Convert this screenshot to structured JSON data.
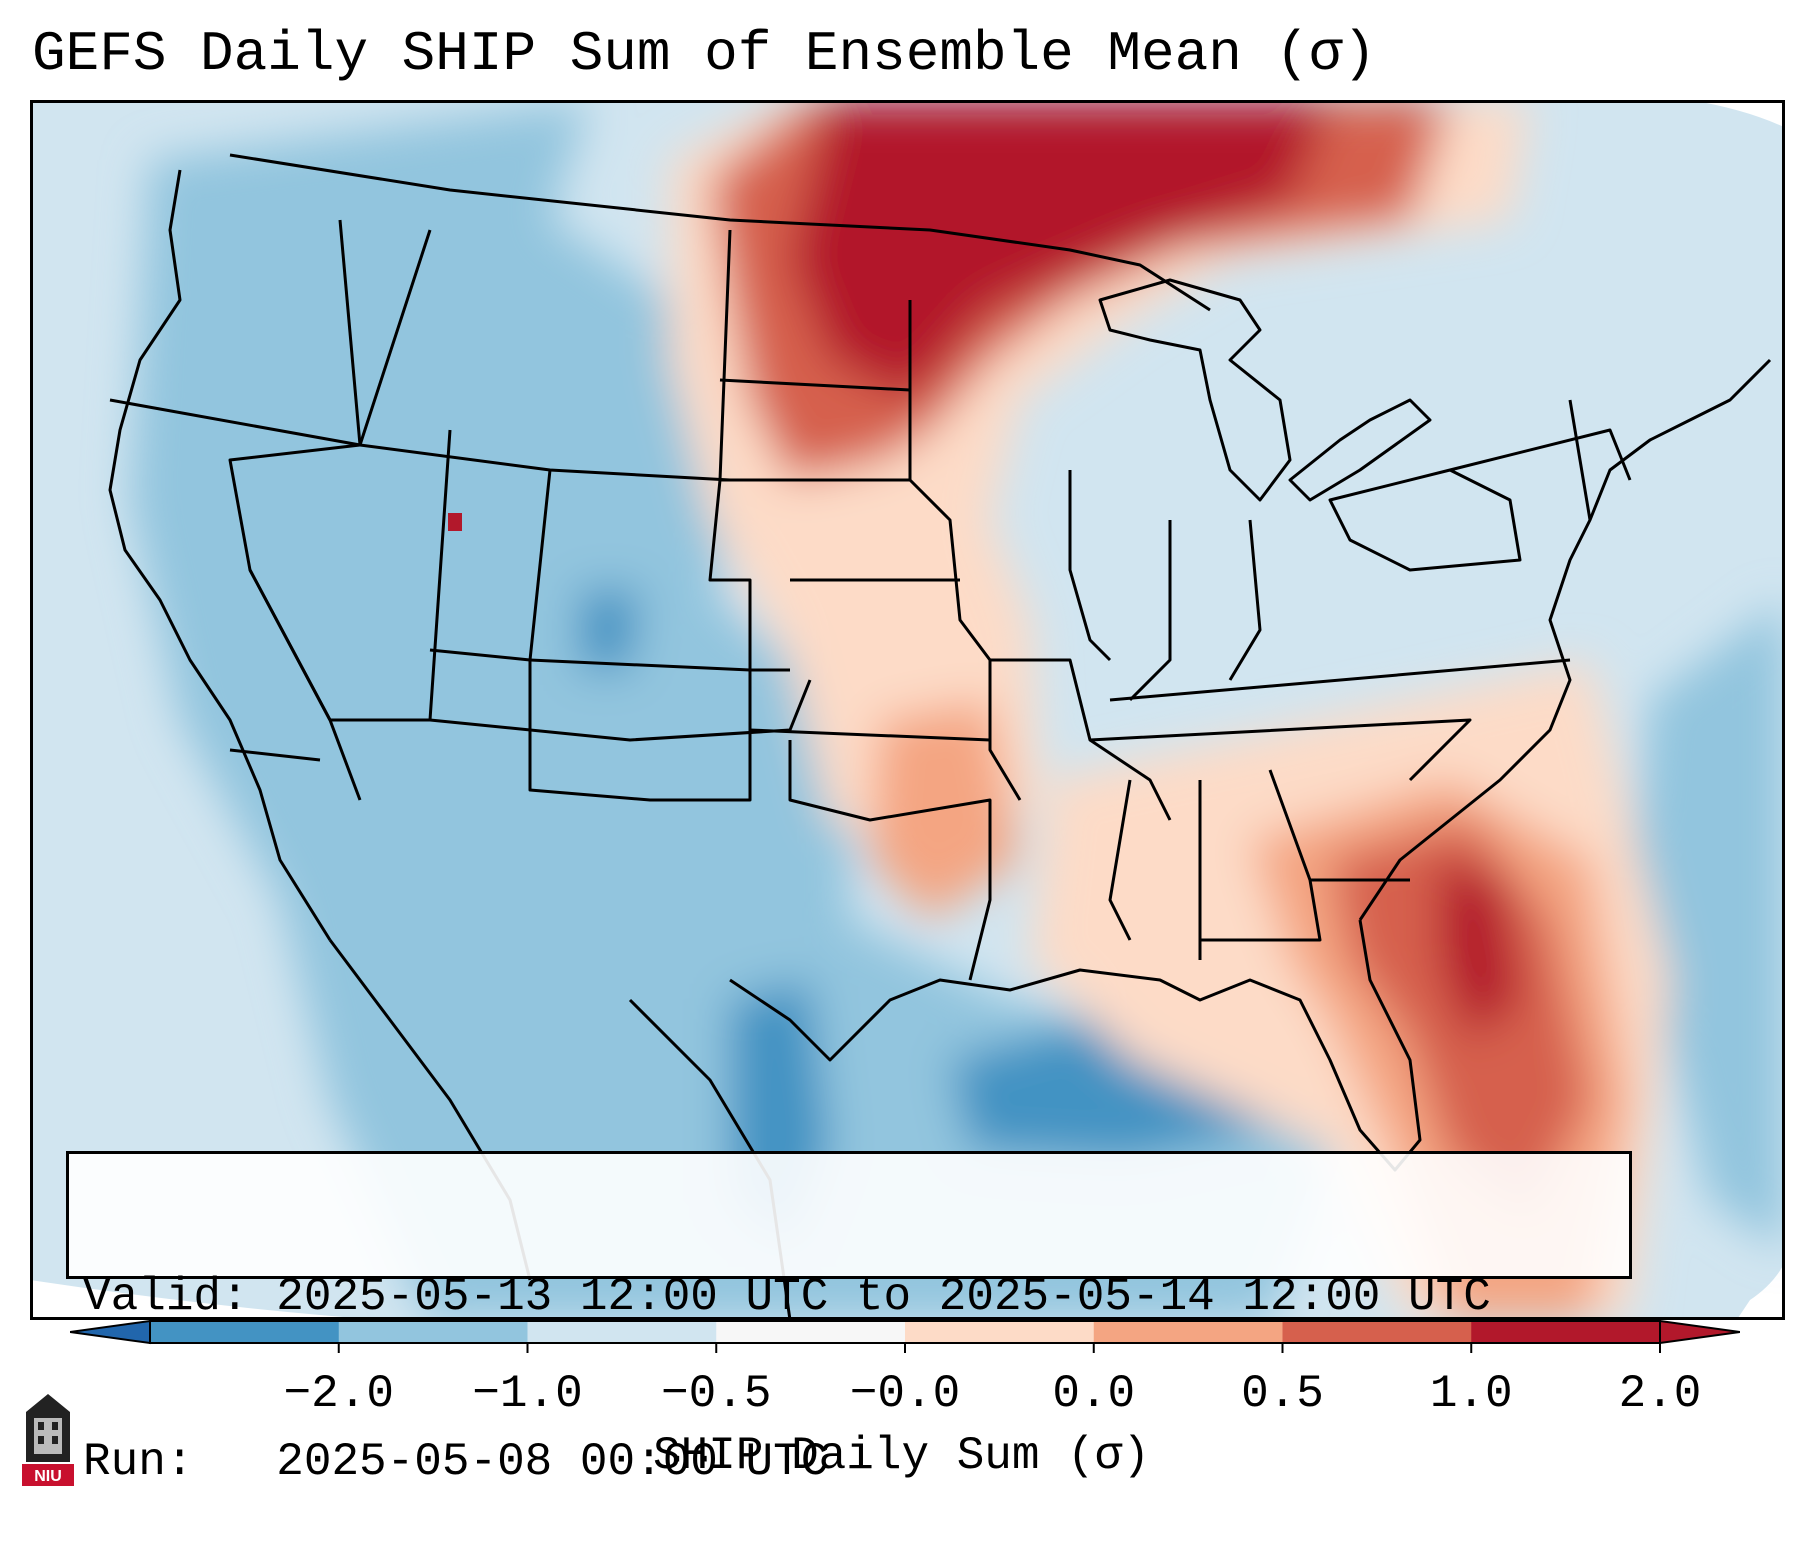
{
  "title": "GEFS Daily SHIP Sum of Ensemble Mean (σ)",
  "valid_line": "Valid: 2025-05-13 12:00 UTC to 2025-05-14 12:00 UTC",
  "run_line": "Run:   2025-05-08 00:00 UTC",
  "colorbar": {
    "title": "SHIP Daily Sum (σ)",
    "tick_labels": [
      "−2.0",
      "−1.0",
      "−0.5",
      "−0.0",
      "0.0",
      "0.5",
      "1.0",
      "2.0"
    ],
    "colors": [
      "#4393c3",
      "#92c5de",
      "#d1e5f0",
      "#f7f7f7",
      "#fddbc7",
      "#f4a582",
      "#d6604d",
      "#b2182b"
    ],
    "under_color": "#2166ac",
    "over_color": "#b2182b"
  },
  "logo_text": "NIU"
}
